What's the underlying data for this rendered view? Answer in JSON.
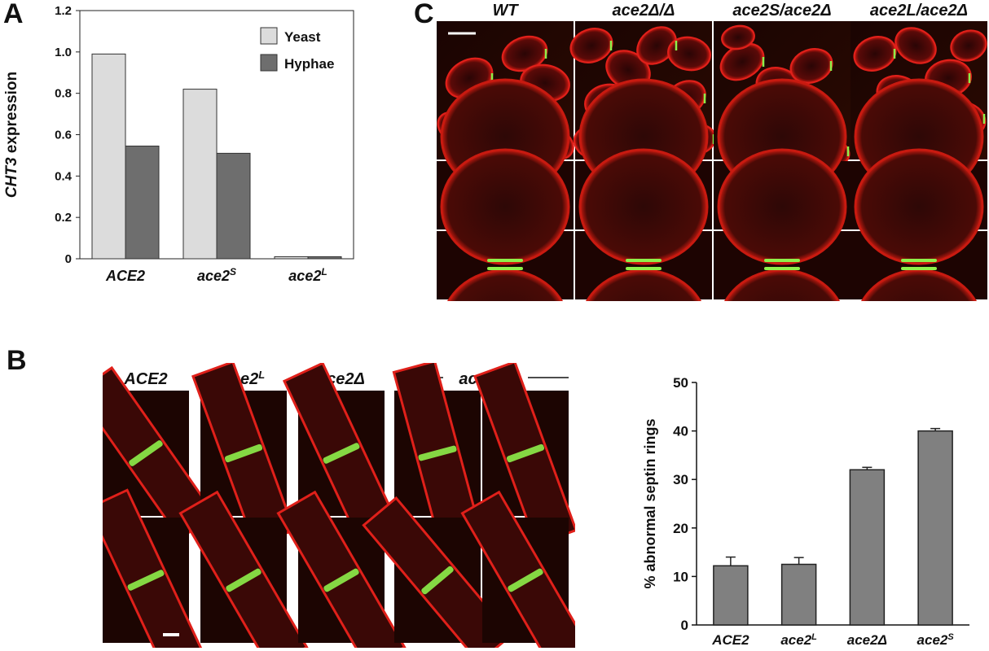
{
  "panels": {
    "a": "A",
    "b": "B",
    "c": "C"
  },
  "chart_a": {
    "type": "bar",
    "ylabel_gene": "CHT3",
    "ylabel_rest": " expression",
    "ylim": [
      0,
      1.2
    ],
    "yticks": [
      "0",
      "0.2",
      "0.4",
      "0.6",
      "0.8",
      "1.0",
      "1.2"
    ],
    "categories": [
      {
        "base": "ACE2",
        "sup": ""
      },
      {
        "base": "ace2",
        "sup": "S"
      },
      {
        "base": "ace2",
        "sup": "L"
      }
    ],
    "series": [
      {
        "name": "Yeast",
        "color": "#dcdcdc",
        "values": [
          0.99,
          0.82,
          0.01
        ]
      },
      {
        "name": "Hyphae",
        "color": "#6e6e6e",
        "values": [
          0.545,
          0.51,
          0.01
        ]
      }
    ],
    "legend_position": "top-right"
  },
  "panel_c": {
    "col_headers": [
      "WT",
      "ace2Δ/Δ",
      "ace2S/ace2Δ",
      "ace2L/ace2Δ"
    ]
  },
  "panel_b": {
    "col_headers": [
      {
        "base": "ACE2",
        "sup": ""
      },
      {
        "base": "ace2",
        "sup": "L"
      },
      {
        "base": "ace2Δ",
        "sup": ""
      },
      {
        "base": "ace2",
        "sup": "S"
      }
    ]
  },
  "chart_data": [
    {
      "type": "bar",
      "title": "",
      "xlabel": "",
      "ylabel": "CHT3 expression",
      "categories": [
        "ACE2",
        "ace2S",
        "ace2L"
      ],
      "series": [
        {
          "name": "Yeast",
          "values": [
            0.99,
            0.82,
            0.01
          ]
        },
        {
          "name": "Hyphae",
          "values": [
            0.545,
            0.51,
            0.01
          ]
        }
      ],
      "ylim": [
        0,
        1.2
      ]
    },
    {
      "type": "bar",
      "title": "",
      "xlabel": "",
      "ylabel": "% abnormal septin rings",
      "categories": [
        "ACE2",
        "ace2L",
        "ace2Δ",
        "ace2S"
      ],
      "values": [
        12.2,
        12.5,
        32,
        40
      ],
      "errors": [
        1.8,
        1.4,
        0.5,
        0.5
      ],
      "ylim": [
        0,
        50
      ]
    }
  ],
  "chart_b": {
    "ylabel": "% abnormal septin rings",
    "yticks": [
      "0",
      "10",
      "20",
      "30",
      "40",
      "50"
    ],
    "ylim": [
      0,
      50
    ],
    "bar_color": "#808080",
    "categories": [
      {
        "base": "ACE2",
        "sup": ""
      },
      {
        "base": "ace2",
        "sup": "L"
      },
      {
        "base": "ace2Δ",
        "sup": ""
      },
      {
        "base": "ace2",
        "sup": "S"
      }
    ],
    "values": [
      12.2,
      12.5,
      32,
      40
    ],
    "errors": [
      1.8,
      1.4,
      0.5,
      0.5
    ]
  }
}
